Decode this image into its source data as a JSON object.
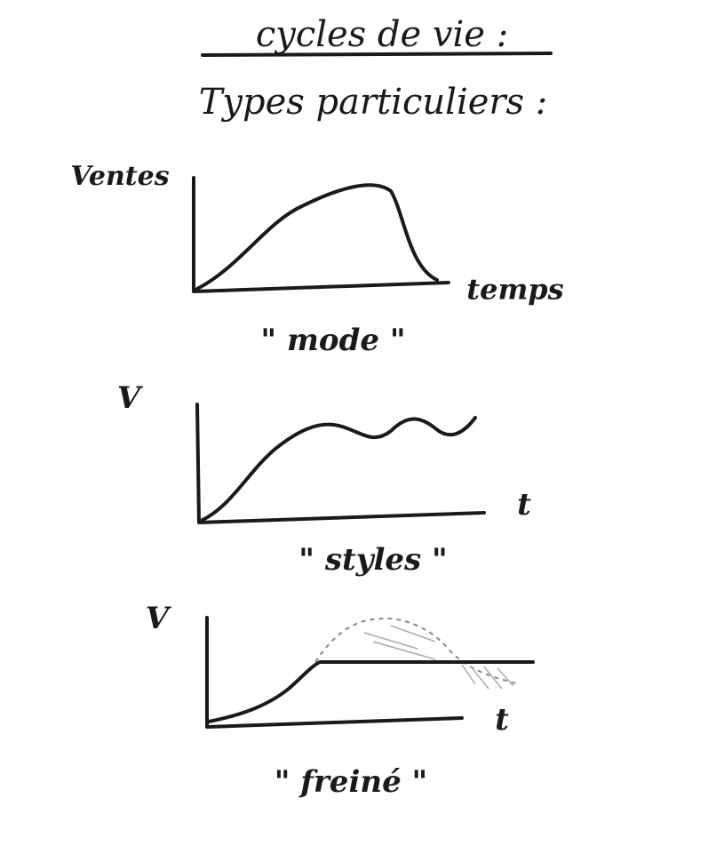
{
  "title": "cycles de vie :",
  "subtitle": "Types particuliers :",
  "panels": [
    {
      "y_label": "Ventes",
      "x_label": "temps",
      "caption": "\" mode \""
    },
    {
      "y_label": "V",
      "x_label": "t",
      "caption": "\" styles \""
    },
    {
      "y_label": "V",
      "x_label": "t",
      "caption": "\" freiné \""
    }
  ]
}
